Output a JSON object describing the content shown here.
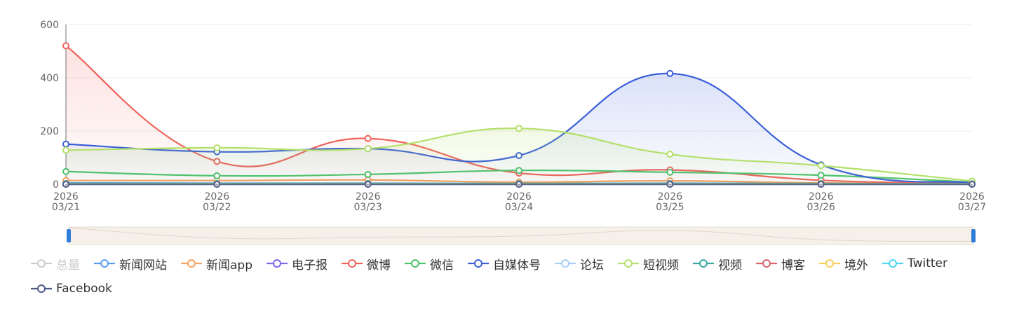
{
  "chart_data": {
    "type": "line",
    "smooth": true,
    "categories": [
      "2026\n03/21",
      "2026\n03/22",
      "2026\n03/23",
      "2026\n03/24",
      "2026\n03/25",
      "2026\n03/26",
      "2026\n03/27"
    ],
    "ylim": [
      0,
      600
    ],
    "yticks": [
      0,
      200,
      400,
      600
    ],
    "grid": true,
    "legend_position": "bottom",
    "series": [
      {
        "name": "总量",
        "color": "#c8c8c8",
        "visible": false,
        "values": [
          0,
          0,
          0,
          0,
          0,
          0,
          0
        ]
      },
      {
        "name": "新闻网站",
        "color": "#5b9bf0",
        "visible": true,
        "values": [
          5,
          4,
          4,
          3,
          4,
          3,
          2
        ]
      },
      {
        "name": "新闻app",
        "color": "#f4a261",
        "visible": true,
        "values": [
          14,
          14,
          16,
          8,
          13,
          5,
          3
        ]
      },
      {
        "name": "电子报",
        "color": "#7b68ee",
        "visible": true,
        "values": [
          0,
          0,
          0,
          0,
          0,
          0,
          0
        ]
      },
      {
        "name": "微博",
        "color": "#f0635a",
        "visible": true,
        "area": true,
        "values": [
          520,
          86,
          172,
          42,
          54,
          15,
          3
        ]
      },
      {
        "name": "微信",
        "color": "#4cc46a",
        "visible": true,
        "values": [
          48,
          32,
          37,
          52,
          45,
          34,
          8
        ]
      },
      {
        "name": "自媒体号",
        "color": "#3a5fd9",
        "visible": true,
        "area": true,
        "values": [
          151,
          122,
          134,
          108,
          416,
          73,
          5
        ]
      },
      {
        "name": "论坛",
        "color": "#a9cdf2",
        "visible": true,
        "values": [
          2,
          2,
          2,
          2,
          2,
          2,
          1
        ]
      },
      {
        "name": "短视频",
        "color": "#b3e06a",
        "visible": true,
        "area": true,
        "values": [
          128,
          137,
          134,
          210,
          113,
          70,
          12
        ]
      },
      {
        "name": "视频",
        "color": "#3aa6a0",
        "visible": true,
        "values": [
          3,
          3,
          3,
          3,
          3,
          3,
          2
        ]
      },
      {
        "name": "博客",
        "color": "#d9646e",
        "visible": true,
        "values": [
          1,
          1,
          1,
          1,
          1,
          1,
          1
        ]
      },
      {
        "name": "境外",
        "color": "#f6d05a",
        "visible": true,
        "values": [
          1,
          1,
          1,
          1,
          1,
          1,
          1
        ]
      },
      {
        "name": "Twitter",
        "color": "#4dd6ef",
        "visible": true,
        "values": [
          0,
          0,
          0,
          0,
          0,
          0,
          0
        ]
      },
      {
        "name": "Facebook",
        "color": "#4e5a8c",
        "visible": true,
        "values": [
          0,
          0,
          0,
          0,
          0,
          0,
          0
        ]
      }
    ]
  },
  "zoom": {
    "start_percent": 0,
    "end_percent": 100
  }
}
